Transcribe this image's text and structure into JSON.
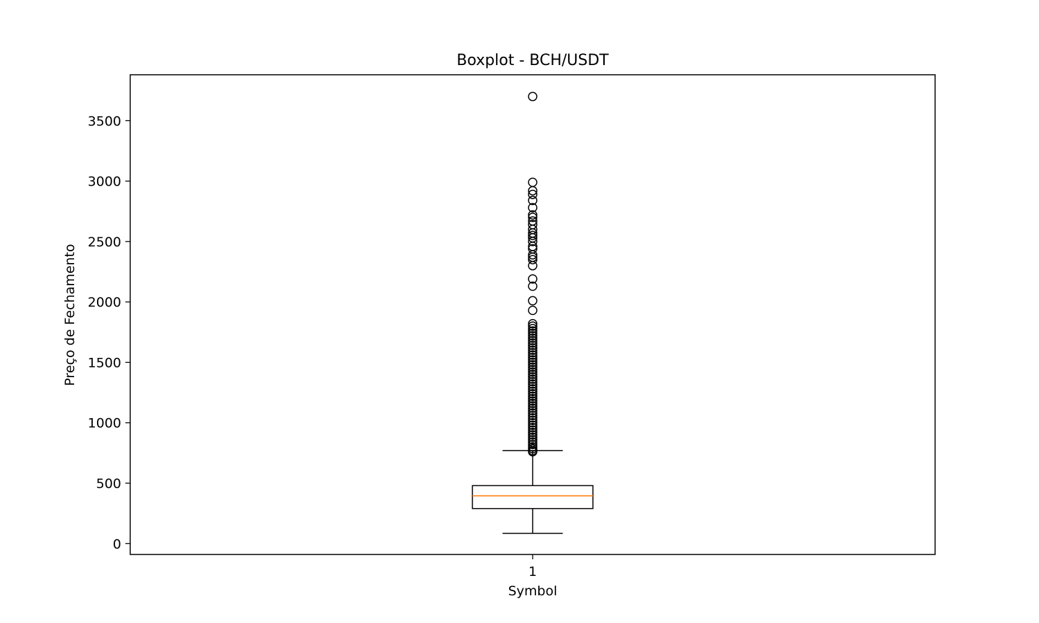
{
  "chart_data": {
    "type": "boxplot",
    "title": "Boxplot - BCH/USDT",
    "xlabel": "Symbol",
    "ylabel": "Preço de Fechamento",
    "categories": [
      "1"
    ],
    "ylim": [
      -90,
      3880
    ],
    "yticks": [
      0,
      500,
      1000,
      1500,
      2000,
      2500,
      3000,
      3500
    ],
    "grid": false,
    "colors": {
      "box": "#000000",
      "median": "#ff7f0e",
      "flier": "#000000"
    },
    "box": {
      "whisker_low": 85,
      "q1": 290,
      "median": 395,
      "q3": 480,
      "whisker_high": 770
    },
    "outliers": [
      3700,
      2990,
      2920,
      2890,
      2840,
      2780,
      2720,
      2700,
      2670,
      2640,
      2600,
      2570,
      2550,
      2530,
      2500,
      2460,
      2440,
      2390,
      2370,
      2350,
      2300,
      2190,
      2130,
      2010,
      1930,
      1820,
      1800,
      1780,
      1760,
      1740,
      1720,
      1700,
      1680,
      1660,
      1640,
      1620,
      1600,
      1580,
      1560,
      1540,
      1520,
      1500,
      1480,
      1460,
      1440,
      1420,
      1400,
      1380,
      1360,
      1340,
      1320,
      1300,
      1280,
      1260,
      1240,
      1220,
      1200,
      1180,
      1160,
      1140,
      1120,
      1100,
      1080,
      1060,
      1040,
      1020,
      1000,
      980,
      960,
      940,
      920,
      900,
      880,
      860,
      840,
      820,
      800,
      785,
      770,
      760
    ]
  }
}
